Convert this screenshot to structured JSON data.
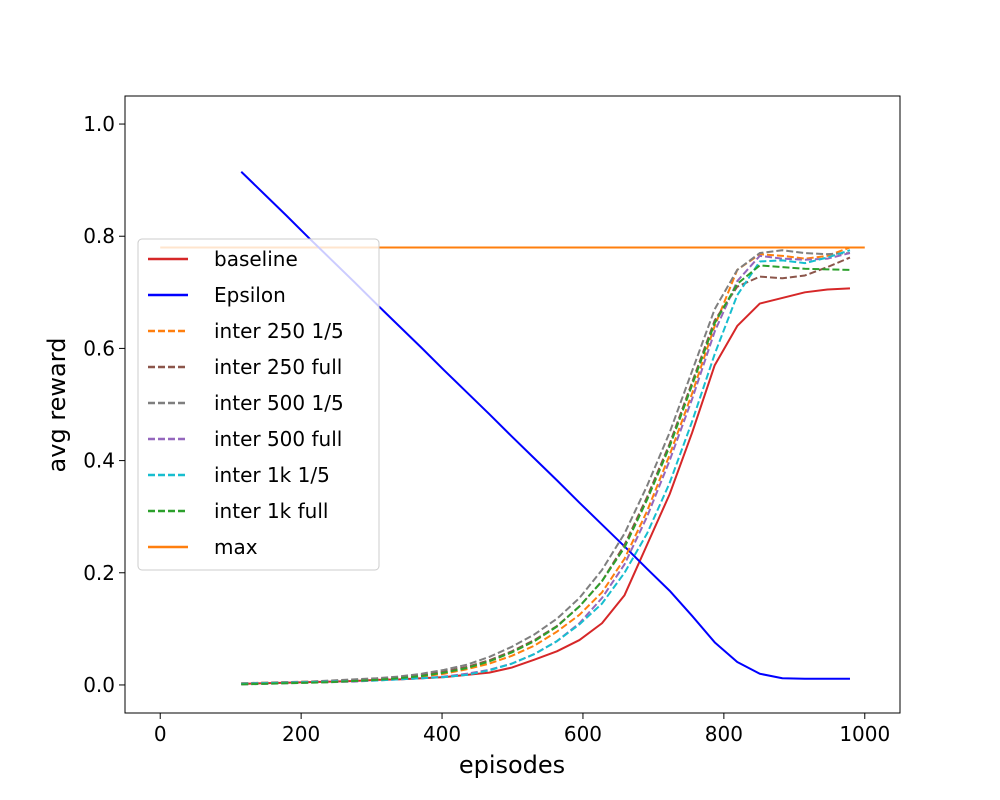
{
  "chart_data": {
    "type": "line",
    "title": "",
    "xlabel": "episodes",
    "ylabel": "avg reward",
    "xlim": [
      -50,
      1050
    ],
    "ylim": [
      -0.05,
      1.05
    ],
    "x_ticks": [
      0,
      200,
      400,
      600,
      800,
      1000
    ],
    "y_ticks": [
      0.0,
      0.2,
      0.4,
      0.6,
      0.8,
      1.0
    ],
    "grid": false,
    "legend_position": "center-left",
    "x": [
      115,
      147,
      179,
      211,
      243,
      275,
      307,
      339,
      371,
      403,
      435,
      467,
      499,
      531,
      563,
      595,
      627,
      659,
      691,
      723,
      755,
      787,
      819,
      851,
      883,
      915,
      947,
      979
    ],
    "series": [
      {
        "name": "baseline",
        "color": "#d62728",
        "style": "solid",
        "values": [
          0.002,
          0.003,
          0.004,
          0.005,
          0.006,
          0.007,
          0.009,
          0.01,
          0.012,
          0.014,
          0.018,
          0.022,
          0.031,
          0.045,
          0.06,
          0.08,
          0.11,
          0.16,
          0.25,
          0.34,
          0.45,
          0.57,
          0.64,
          0.68,
          0.69,
          0.7,
          0.705,
          0.707
        ]
      },
      {
        "name": "Epsilon",
        "color": "#0000ff",
        "style": "solid",
        "values": [
          0.915,
          0.876,
          0.837,
          0.797,
          0.758,
          0.719,
          0.679,
          0.64,
          0.601,
          0.561,
          0.522,
          0.483,
          0.443,
          0.404,
          0.365,
          0.325,
          0.286,
          0.247,
          0.207,
          0.168,
          0.123,
          0.076,
          0.041,
          0.02,
          0.012,
          0.011,
          0.011,
          0.011
        ]
      },
      {
        "name": "inter 250 1/5",
        "color": "#ff7f0e",
        "style": "dashed",
        "values": [
          0.003,
          0.004,
          0.005,
          0.006,
          0.007,
          0.008,
          0.01,
          0.012,
          0.015,
          0.02,
          0.028,
          0.038,
          0.052,
          0.07,
          0.095,
          0.125,
          0.165,
          0.225,
          0.31,
          0.41,
          0.52,
          0.64,
          0.74,
          0.768,
          0.765,
          0.76,
          0.765,
          0.78
        ]
      },
      {
        "name": "inter 250 full",
        "color": "#8c564b",
        "style": "dashed",
        "values": [
          0.002,
          0.003,
          0.004,
          0.005,
          0.006,
          0.008,
          0.01,
          0.013,
          0.018,
          0.024,
          0.032,
          0.044,
          0.06,
          0.08,
          0.105,
          0.14,
          0.185,
          0.25,
          0.335,
          0.43,
          0.54,
          0.65,
          0.71,
          0.728,
          0.725,
          0.73,
          0.745,
          0.762
        ]
      },
      {
        "name": "inter 500 1/5",
        "color": "#7f7f7f",
        "style": "dashed",
        "values": [
          0.003,
          0.004,
          0.005,
          0.006,
          0.008,
          0.01,
          0.012,
          0.015,
          0.02,
          0.027,
          0.036,
          0.05,
          0.068,
          0.09,
          0.118,
          0.155,
          0.205,
          0.27,
          0.355,
          0.45,
          0.56,
          0.67,
          0.74,
          0.77,
          0.775,
          0.77,
          0.768,
          0.77
        ]
      },
      {
        "name": "inter 500 full",
        "color": "#9467bd",
        "style": "dashed",
        "values": [
          0.001,
          0.002,
          0.003,
          0.004,
          0.005,
          0.006,
          0.008,
          0.01,
          0.012,
          0.015,
          0.02,
          0.027,
          0.038,
          0.055,
          0.078,
          0.11,
          0.155,
          0.215,
          0.3,
          0.4,
          0.51,
          0.63,
          0.72,
          0.765,
          0.76,
          0.758,
          0.76,
          0.77
        ]
      },
      {
        "name": "inter 1k 1/5",
        "color": "#17becf",
        "style": "dashed",
        "values": [
          0.002,
          0.003,
          0.004,
          0.005,
          0.006,
          0.007,
          0.008,
          0.01,
          0.012,
          0.014,
          0.018,
          0.026,
          0.038,
          0.055,
          0.078,
          0.108,
          0.145,
          0.2,
          0.27,
          0.36,
          0.47,
          0.59,
          0.695,
          0.755,
          0.757,
          0.752,
          0.762,
          0.775
        ]
      },
      {
        "name": "inter 1k full",
        "color": "#2ca02c",
        "style": "dashed",
        "values": [
          0.001,
          0.002,
          0.003,
          0.004,
          0.005,
          0.007,
          0.009,
          0.012,
          0.016,
          0.022,
          0.03,
          0.042,
          0.058,
          0.078,
          0.104,
          0.14,
          0.185,
          0.245,
          0.33,
          0.425,
          0.535,
          0.645,
          0.715,
          0.748,
          0.745,
          0.742,
          0.741,
          0.74
        ]
      }
    ],
    "reference_line": {
      "name": "max",
      "color": "#ff7f0e",
      "x": [
        0,
        1000
      ],
      "values": [
        0.78,
        0.78
      ]
    }
  }
}
